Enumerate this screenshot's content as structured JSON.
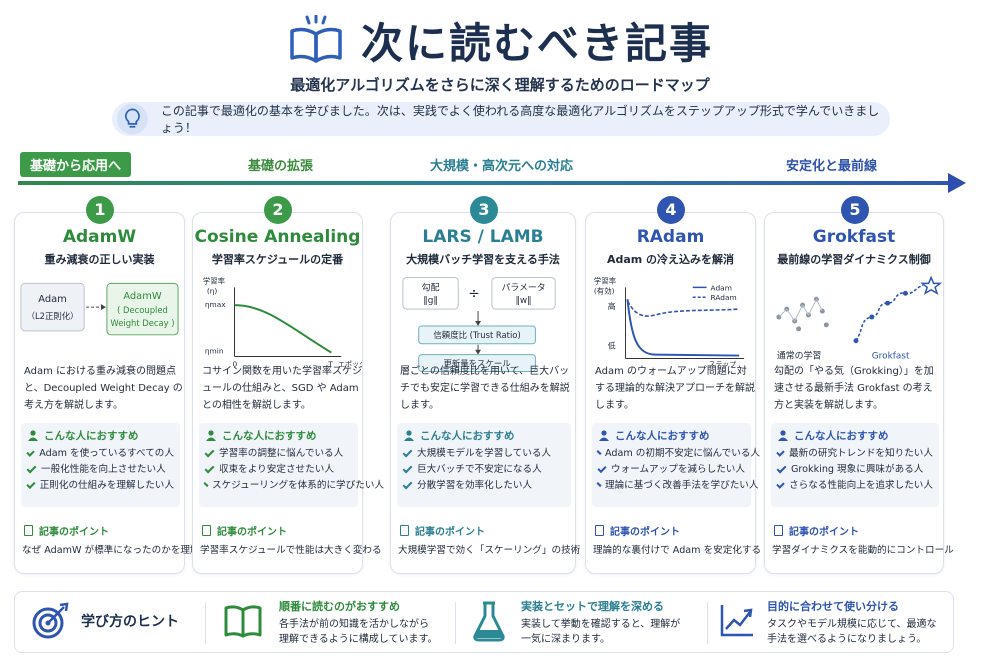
{
  "header": {
    "title": "次に読むべき記事",
    "subtitle": "最適化アルゴリズムをさらに深く理解するためのロードマップ",
    "intro": "この記事で最適化の基本を学びました。次は、実践でよく使われる高度な最適化アルゴリズムをステップアップ形式で学んでいきましょう！"
  },
  "timeline": {
    "stages": [
      "基礎から応用へ",
      "基礎の拡張",
      "大規模・高次元への対応",
      "安定化と最前線"
    ]
  },
  "colors": {
    "green": "#3c9a48",
    "teal": "#2b8a96",
    "blue": "#2f55b0",
    "navy": "#1d2f4f"
  },
  "cards": [
    {
      "num": "1",
      "title": "AdamW",
      "subtitle": "重み減衰の正しい実装",
      "illus": {
        "box1_line1": "Adam",
        "box1_line2": "（L2正則化）",
        "box2_line1": "AdamW",
        "box2_line2": "( Decoupled",
        "box2_line3": "Weight Decay )"
      },
      "desc": "Adam における重み減衰の問題点と、Decoupled Weight Decay の考え方を解説します。",
      "rec_title": "こんな人におすすめ",
      "rec": [
        "Adam を使っているすべての人",
        "一般化性能を向上させたい人",
        "正則化の仕組みを理解したい人"
      ],
      "point_title": "記事のポイント",
      "point": "なぜ AdamW が標準になったのかを理解する"
    },
    {
      "num": "2",
      "title": "Cosine Annealing",
      "subtitle": "学習率スケジュールの定番",
      "illus": {
        "ylabel1": "学習率",
        "ylabel2": "(η)",
        "eta_max": "ηmax",
        "eta_min": "ηmin",
        "x0": "0",
        "xT": "T",
        "xlabel": "エポック"
      },
      "desc": "コサイン関数を用いた学習率スケジュールの仕組みと、SGD や Adam との相性を解説します。",
      "rec_title": "こんな人におすすめ",
      "rec": [
        "学習率の調整に悩んでいる人",
        "収束をより安定させたい人",
        "スケジューリングを体系的に学びたい人"
      ],
      "point_title": "記事のポイント",
      "point": "学習率スケジュールで性能は大きく変わる"
    },
    {
      "num": "3",
      "title": "LARS / LAMB",
      "subtitle": "大規模バッチ学習を支える手法",
      "illus": {
        "box_a_line1": "勾配",
        "box_a_line2": "‖g‖",
        "op": "÷",
        "box_b_line1": "パラメータ",
        "box_b_line2": "‖w‖",
        "ratio": "信頼度比 (Trust Ratio)",
        "update": "更新量をスケール"
      },
      "desc": "層ごとの信頼度比を用いて、巨大バッチでも安定に学習できる仕組みを解説します。",
      "rec_title": "こんな人におすすめ",
      "rec": [
        "大規模モデルを学習している人",
        "巨大バッチで不安定になる人",
        "分散学習を効率化したい人"
      ],
      "point_title": "記事のポイント",
      "point": "大規模学習で効く「スケーリング」の技術"
    },
    {
      "num": "4",
      "title": "RAdam",
      "subtitle": "Adam の冷え込みを解消",
      "illus": {
        "ylabel1": "学習率",
        "ylabel2": "(有効)",
        "high": "高",
        "low": "低",
        "xlabel": "ステップ",
        "legend1": "Adam",
        "legend2": "RAdam"
      },
      "desc": "Adam のウォームアップ問題に対する理論的な解決アプローチを解説します。",
      "rec_title": "こんな人におすすめ",
      "rec": [
        "Adam の初期不安定に悩んでいる人",
        "ウォームアップを減らしたい人",
        "理論に基づく改善手法を学びたい人"
      ],
      "point_title": "記事のポイント",
      "point": "理論的な裏付けで Adam を安定化する"
    },
    {
      "num": "5",
      "title": "Grokfast",
      "subtitle": "最前線の学習ダイナミクス制御",
      "illus": {
        "label1": "通常の学習",
        "label2": "Grokfast"
      },
      "desc": "勾配の「やる気（Grokking）」を加速させる最新手法 Grokfast の考え方と実装を解説します。",
      "rec_title": "こんな人におすすめ",
      "rec": [
        "最新の研究トレンドを知りたい人",
        "Grokking 現象に興味がある人",
        "さらなる性能向上を追求したい人"
      ],
      "point_title": "記事のポイント",
      "point": "学習ダイナミクスを能動的にコントロール"
    }
  ],
  "hints": {
    "label": "学び方のヒント",
    "items": [
      {
        "title": "順番に読むのがおすすめ",
        "text1": "各手法が前の知識を活かしながら",
        "text2": "理解できるように構成しています。"
      },
      {
        "title": "実装とセットで理解を深める",
        "text1": "実装して挙動を確認すると、理解が",
        "text2": "一気に深まります。"
      },
      {
        "title": "目的に合わせて使い分ける",
        "text1": "タスクやモデル規模に応じて、最適な",
        "text2": "手法を選べるようになりましょう。"
      }
    ]
  }
}
